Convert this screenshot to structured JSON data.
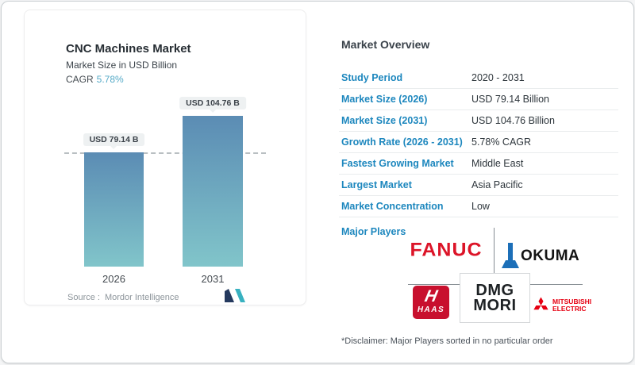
{
  "chart_data": {
    "type": "bar",
    "title": "CNC Machines Market",
    "subtitle": "Market Size in USD Billion",
    "cagr_label": "CAGR",
    "cagr_value": "5.78%",
    "categories": [
      "2026",
      "2031"
    ],
    "values": [
      79.14,
      104.76
    ],
    "value_labels": [
      "USD 79.14 B",
      "USD 104.76 B"
    ],
    "ylabel": "Market Size in USD Billion",
    "ylim": [
      0,
      104.76
    ],
    "reference_line_value": 79.14,
    "grid": "off",
    "source_label": "Source :",
    "source_value": "Mordor Intelligence"
  },
  "overview": {
    "title": "Market Overview",
    "rows": [
      {
        "label": "Study Period",
        "value": "2020 - 2031"
      },
      {
        "label": "Market Size (2026)",
        "value": "USD 79.14 Billion"
      },
      {
        "label": "Market Size (2031)",
        "value": "USD 104.76 Billion"
      },
      {
        "label": "Growth Rate (2026 - 2031)",
        "value": "5.78% CAGR"
      },
      {
        "label": "Fastest Growing Market",
        "value": "Middle East"
      },
      {
        "label": "Largest Market",
        "value": "Asia Pacific"
      },
      {
        "label": "Market Concentration",
        "value": "Low"
      }
    ],
    "major_players_label": "Major Players",
    "major_players": {
      "fanuc": "FANUC",
      "okuma": "OKUMA",
      "haas_glyph": "H",
      "haas": "HAAS",
      "dmg_line1": "DMG",
      "dmg_line2": "MORI",
      "mitsubishi_line1": "MITSUBISHI",
      "mitsubishi_line2": "ELECTRIC"
    },
    "disclaimer": "*Disclaimer: Major Players sorted in no particular order"
  },
  "colors": {
    "accent_blue": "#1d87be",
    "cagr_value_blue": "#57abc8",
    "bar_gradient_top": "#5b8cb4",
    "bar_gradient_bottom": "#81c5ca",
    "fanuc_red": "#dc1428",
    "haas_red": "#c8102e",
    "mitsubishi_red": "#e60012",
    "okuma_blue": "#1c6fb8",
    "dmg_black": "#1d2124"
  }
}
